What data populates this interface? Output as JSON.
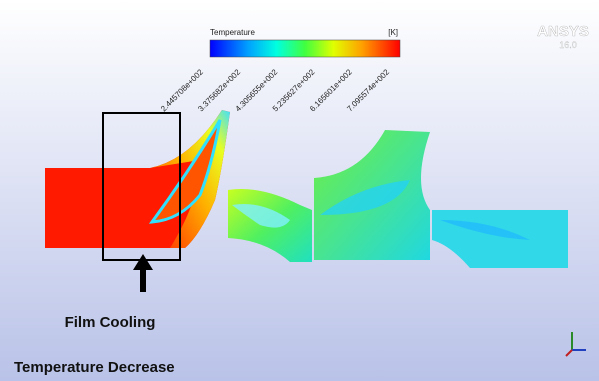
{
  "colorbar": {
    "title": "Temperature",
    "unit": "[K]",
    "labels": [
      "2.445708e+002",
      "3.375682e+002",
      "4.305655e+002",
      "5.235627e+002",
      "6.165601e+002",
      "7.095574e+002"
    ]
  },
  "logo": {
    "name": "ANSYS",
    "version": "16.0"
  },
  "annotations": {
    "film_cooling": "Film Cooling",
    "temperature_decrease": "Temperature Decrease"
  }
}
